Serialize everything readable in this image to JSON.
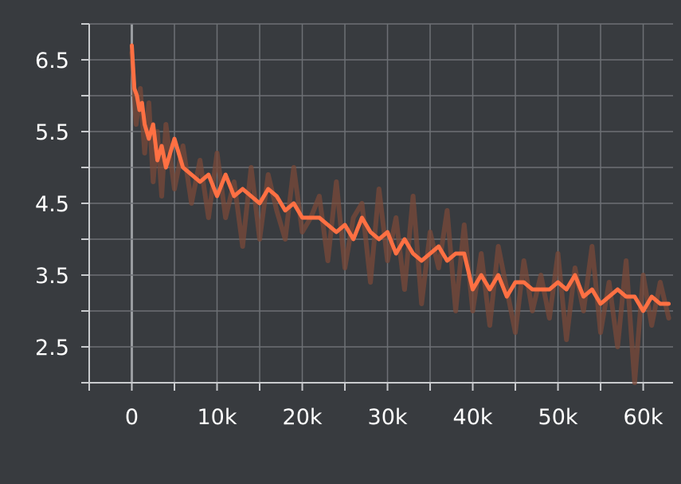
{
  "chart_data": {
    "type": "line",
    "title": "",
    "xlabel": "",
    "ylabel": "",
    "xlim": [
      -5000,
      63500
    ],
    "ylim": [
      2.0,
      7.0
    ],
    "x_ticks": [
      0,
      10000,
      20000,
      30000,
      40000,
      50000,
      60000
    ],
    "x_tick_labels": [
      "0",
      "10k",
      "20k",
      "30k",
      "40k",
      "50k",
      "60k"
    ],
    "y_ticks": [
      2.5,
      3.5,
      4.5,
      5.5,
      6.5
    ],
    "y_tick_labels": [
      "2.5",
      "3.5",
      "4.5",
      "5.5",
      "6.5"
    ],
    "grid": true,
    "legend": "none",
    "colors": {
      "background": "#383b3f",
      "grid": "#6d7075",
      "zero_line": "#9a9da1",
      "axis": "#c9cbce",
      "smoothed": "#ff7043",
      "raw": "#7a4a3a"
    },
    "series": [
      {
        "role": "raw",
        "x": [
          0,
          500,
          1000,
          1500,
          2000,
          2500,
          3000,
          3500,
          4000,
          5000,
          6000,
          7000,
          8000,
          9000,
          10000,
          11000,
          12000,
          13000,
          14000,
          15000,
          16000,
          17000,
          18000,
          19000,
          20000,
          21000,
          22000,
          23000,
          24000,
          25000,
          26000,
          27000,
          28000,
          29000,
          30000,
          31000,
          32000,
          33000,
          34000,
          35000,
          36000,
          37000,
          38000,
          39000,
          40000,
          41000,
          42000,
          43000,
          44000,
          45000,
          46000,
          47000,
          48000,
          49000,
          50000,
          51000,
          52000,
          53000,
          54000,
          55000,
          56000,
          57000,
          58000,
          59000,
          60000,
          61000,
          62000,
          63000
        ],
        "y": [
          6.6,
          5.6,
          6.1,
          5.2,
          5.9,
          4.8,
          5.5,
          4.6,
          5.6,
          4.7,
          5.3,
          4.5,
          5.1,
          4.3,
          5.2,
          4.3,
          4.8,
          3.9,
          5.0,
          4.0,
          4.9,
          4.4,
          4.0,
          5.0,
          4.1,
          4.3,
          4.6,
          3.7,
          4.8,
          3.6,
          4.3,
          4.5,
          3.4,
          4.7,
          3.7,
          4.3,
          3.3,
          4.6,
          3.1,
          4.1,
          3.6,
          4.4,
          3.0,
          4.2,
          3.0,
          3.8,
          2.8,
          3.9,
          3.3,
          2.7,
          3.7,
          3.0,
          3.5,
          2.9,
          3.8,
          2.6,
          3.6,
          3.0,
          3.9,
          2.7,
          3.4,
          2.5,
          3.7,
          2.0,
          3.5,
          2.8,
          3.4,
          2.9
        ]
      },
      {
        "role": "smoothed",
        "x": [
          0,
          300,
          600,
          900,
          1200,
          1500,
          2000,
          2500,
          3000,
          3500,
          4000,
          4500,
          5000,
          6000,
          7000,
          8000,
          9000,
          10000,
          11000,
          12000,
          13000,
          14000,
          15000,
          16000,
          17000,
          18000,
          19000,
          20000,
          21000,
          22000,
          23000,
          24000,
          25000,
          26000,
          27000,
          28000,
          29000,
          30000,
          31000,
          32000,
          33000,
          34000,
          35000,
          36000,
          37000,
          38000,
          39000,
          40000,
          41000,
          42000,
          43000,
          44000,
          45000,
          46000,
          47000,
          48000,
          49000,
          50000,
          51000,
          52000,
          53000,
          54000,
          55000,
          56000,
          57000,
          58000,
          59000,
          60000,
          61000,
          62000,
          63000
        ],
        "y": [
          6.7,
          6.1,
          6.0,
          5.8,
          5.9,
          5.6,
          5.4,
          5.6,
          5.1,
          5.3,
          5.0,
          5.2,
          5.4,
          5.0,
          4.9,
          4.8,
          4.9,
          4.6,
          4.9,
          4.6,
          4.7,
          4.6,
          4.5,
          4.7,
          4.6,
          4.4,
          4.5,
          4.3,
          4.3,
          4.3,
          4.2,
          4.1,
          4.2,
          4.0,
          4.3,
          4.1,
          4.0,
          4.1,
          3.8,
          4.0,
          3.8,
          3.7,
          3.8,
          3.9,
          3.7,
          3.8,
          3.8,
          3.3,
          3.5,
          3.3,
          3.5,
          3.2,
          3.4,
          3.4,
          3.3,
          3.3,
          3.3,
          3.4,
          3.3,
          3.5,
          3.2,
          3.3,
          3.1,
          3.2,
          3.3,
          3.2,
          3.2,
          3.0,
          3.2,
          3.1,
          3.1
        ]
      }
    ]
  }
}
